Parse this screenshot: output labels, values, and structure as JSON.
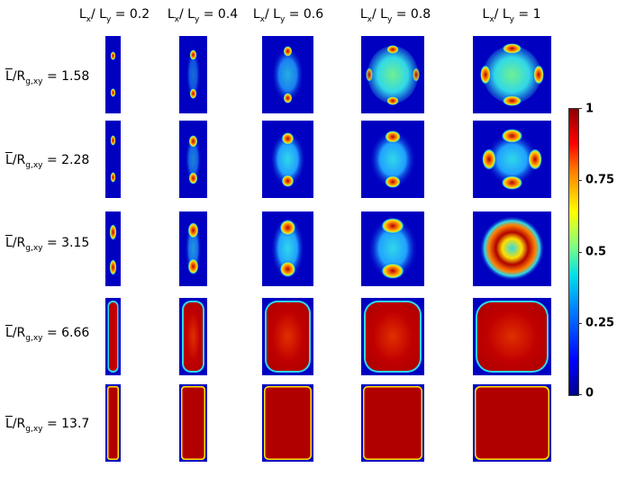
{
  "columns": [
    {
      "lx": "L",
      "sx": "x",
      "sep": "/ ",
      "ly": "L",
      "sy": "y",
      "eq": " = 0.2"
    },
    {
      "lx": "L",
      "sx": "x",
      "sep": "/ ",
      "ly": "L",
      "sy": "y",
      "eq": " = 0.4"
    },
    {
      "lx": "L",
      "sx": "x",
      "sep": "/ ",
      "ly": "L",
      "sy": "y",
      "eq": " = 0.6"
    },
    {
      "lx": "L",
      "sx": "x",
      "sep": "/ ",
      "ly": "L",
      "sy": "y",
      "eq": " = 0.8"
    },
    {
      "lx": "L",
      "sx": "x",
      "sep": "/ ",
      "ly": "L",
      "sy": "y",
      "eq": " = 1"
    }
  ],
  "rows": [
    {
      "l": "L",
      "mid": "/R",
      "sub": "g,xy",
      "eq": " = 1.58"
    },
    {
      "l": "L",
      "mid": "/R",
      "sub": "g,xy",
      "eq": " = 2.28"
    },
    {
      "l": "L",
      "mid": "/R",
      "sub": "g,xy",
      "eq": " = 3.15"
    },
    {
      "l": "L",
      "mid": "/R",
      "sub": "g,xy",
      "eq": " = 6.66"
    },
    {
      "l": "L",
      "mid": "/R",
      "sub": "g,xy",
      "eq": " = 13.7"
    }
  ],
  "colorbar": {
    "ticks": [
      "1",
      "0.75",
      "0.5",
      "0.25",
      "0"
    ]
  },
  "colors": {
    "background": "#0000c0",
    "deep": "#00008c",
    "red": "#b00000",
    "cyan": "#30d8e8",
    "yellow": "#ffe000",
    "green": "#70f090"
  }
}
